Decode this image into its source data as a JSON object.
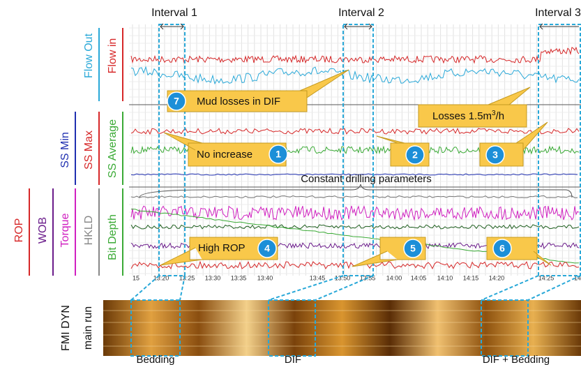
{
  "intervals": [
    "Interval 1",
    "Interval 2",
    "Interval 3"
  ],
  "track_labels": {
    "flow": [
      "Flow Out",
      "Flow in"
    ],
    "ss": [
      "SS Min",
      "SS Max",
      "SS Average"
    ],
    "drilling": [
      "ROP",
      "WOB",
      "Torque",
      "HKLD",
      "Bit Depth"
    ],
    "image": [
      "FMI DYN",
      "main run"
    ]
  },
  "time_ticks": [
    "15",
    "13:20",
    "13:25",
    "13:30",
    "13:35",
    "13:40",
    "13:45",
    "13:50",
    "13:55",
    "14:00",
    "14:05",
    "14:10",
    "14:15",
    "14:20",
    "14:25",
    "14"
  ],
  "callouts": {
    "mud_losses": {
      "number": "7",
      "text": "Mud losses in DIF"
    },
    "losses_rate": {
      "text": "Losses 1.5m",
      "sup": "3",
      "tail": "/h"
    },
    "no_increase": {
      "text": "No increase",
      "number": "1"
    },
    "c2": "2",
    "c3": "3",
    "high_rop": {
      "text": "High ROP",
      "number": "4"
    },
    "c5": "5",
    "c6": "6",
    "constant": "Constant drilling parameters"
  },
  "image_labels": [
    "Bedding",
    "DIF",
    "DIF + Bedding"
  ]
}
